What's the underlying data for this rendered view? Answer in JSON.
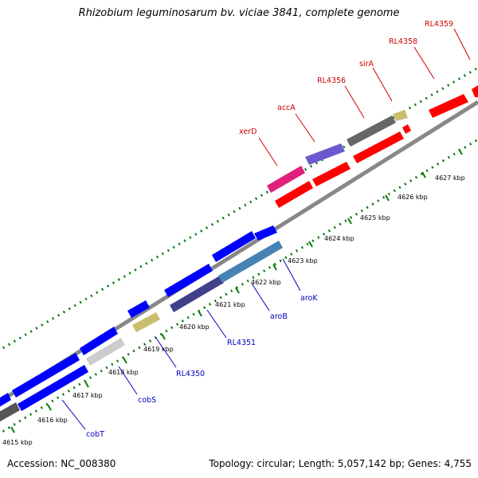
{
  "title": "Rhizobium leguminosarum bv. viciae 3841, complete genome",
  "footer": {
    "accession": "Accession: NC_008380",
    "summary": "Topology: circular; Length: 5,057,142 bp; Genes: 4,755"
  },
  "ticks": [
    "4615 kbp",
    "4616 kbp",
    "4617 kbp",
    "4618 kbp",
    "4619 kbp",
    "4620 kbp",
    "4621 kbp",
    "4622 kbp",
    "4623 kbp",
    "4624 kbp",
    "4625 kbp",
    "4626 kbp",
    "4627 kbp"
  ],
  "genes": {
    "top": [
      "xerD",
      "accA",
      "RL4356",
      "sirA",
      "RL4358",
      "RL4359"
    ],
    "bottom": [
      "cobT",
      "cobS",
      "RL4350",
      "RL4351",
      "aroB",
      "aroK"
    ]
  },
  "colors": {
    "forward": "#0000ff",
    "reverse": "#ff0000",
    "backbone": "#888888",
    "tick": "#0a7a0a",
    "label_top": "#d00000",
    "label_bottom": "#0000c0"
  }
}
